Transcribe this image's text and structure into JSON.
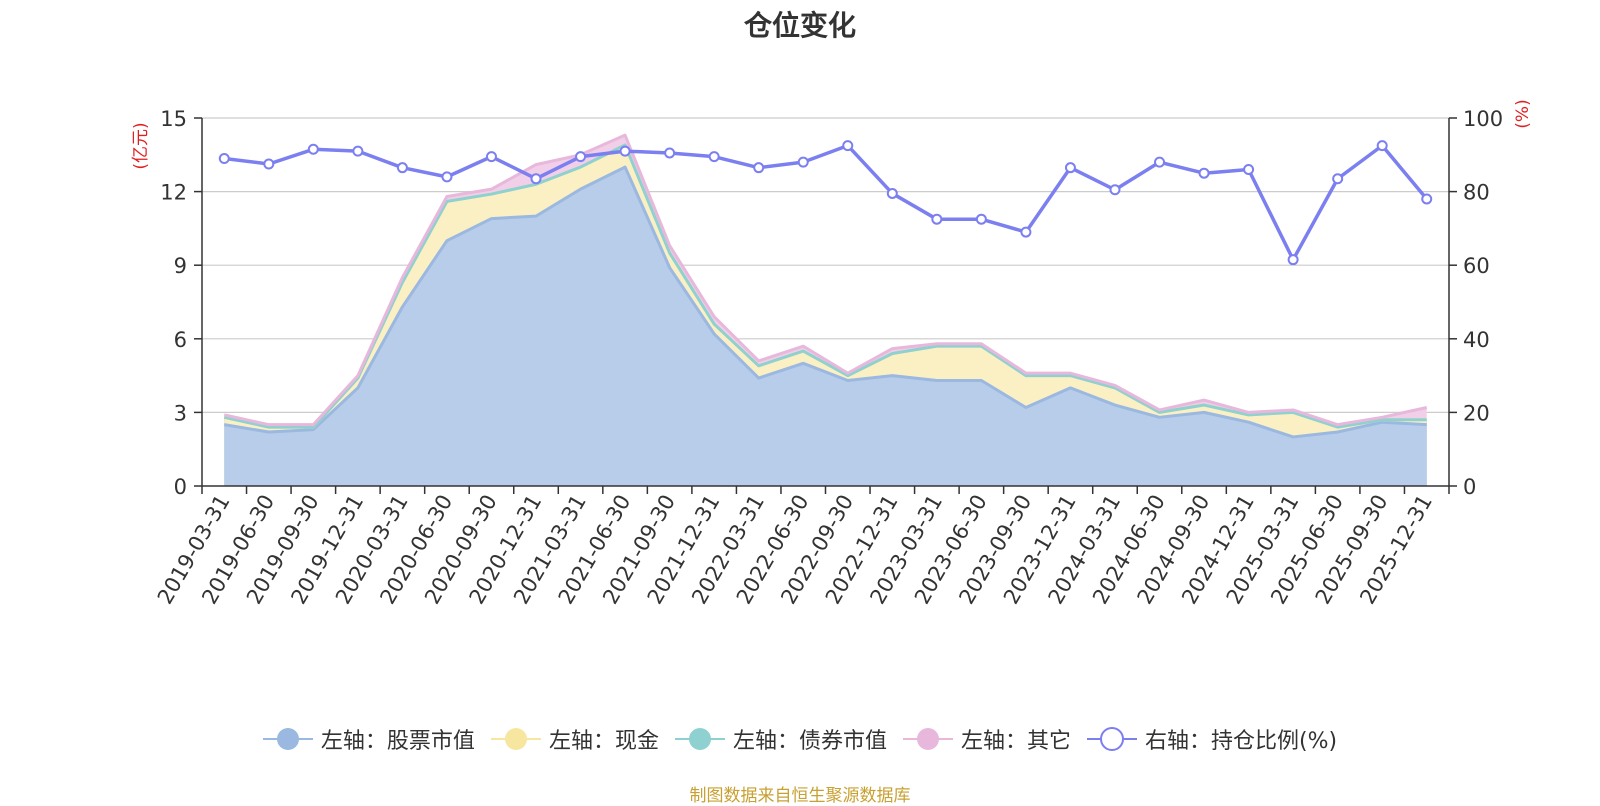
{
  "chart_data": {
    "type": "area",
    "title": "仓位变化",
    "left_axis": {
      "label": "(亿元)",
      "min": 0,
      "max": 15,
      "ticks": [
        0,
        3,
        6,
        9,
        12,
        15
      ]
    },
    "right_axis": {
      "label": "(%)",
      "min": 0,
      "max": 100,
      "ticks": [
        0,
        20,
        40,
        60,
        80,
        100
      ]
    },
    "categories": [
      "2019-03-31",
      "2019-06-30",
      "2019-09-30",
      "2019-12-31",
      "2020-03-31",
      "2020-06-30",
      "2020-09-30",
      "2020-12-31",
      "2021-03-31",
      "2021-06-30",
      "2021-09-30",
      "2021-12-31",
      "2022-03-31",
      "2022-06-30",
      "2022-09-30",
      "2022-12-31",
      "2023-03-31",
      "2023-06-30",
      "2023-09-30",
      "2023-12-31",
      "2024-03-31",
      "2024-06-30",
      "2024-09-30",
      "2024-12-31",
      "2025-03-31",
      "2025-06-30",
      "2025-09-30",
      "2025-12-31"
    ],
    "series": [
      {
        "name": "左轴：股票市值",
        "axis": "left",
        "color": "#9ab8e0",
        "fill": "#b8cdea",
        "values": [
          2.5,
          2.2,
          2.3,
          4.0,
          7.3,
          10.0,
          10.9,
          11.0,
          12.1,
          13.0,
          8.9,
          6.2,
          4.4,
          5.0,
          4.3,
          4.5,
          4.3,
          4.3,
          3.2,
          4.0,
          3.3,
          2.8,
          3.0,
          2.6,
          2.0,
          2.2,
          2.6,
          2.5
        ]
      },
      {
        "name": "左轴：现金",
        "axis": "left",
        "color": "#f7e6a0",
        "fill": "#fbefc4",
        "values": [
          0.3,
          0.2,
          0.1,
          0.4,
          1.0,
          1.6,
          1.0,
          1.3,
          0.9,
          0.9,
          0.6,
          0.4,
          0.5,
          0.5,
          0.2,
          0.9,
          1.4,
          1.4,
          1.3,
          0.5,
          0.7,
          0.2,
          0.3,
          0.3,
          1.0,
          0.2,
          0.1,
          0.2
        ]
      },
      {
        "name": "左轴：债券市值",
        "axis": "left",
        "color": "#8fd0d0",
        "fill": "#8fd0d0",
        "values": [
          0,
          0,
          0,
          0,
          0,
          0,
          0,
          0,
          0,
          0,
          0,
          0,
          0,
          0,
          0,
          0,
          0,
          0,
          0,
          0,
          0,
          0,
          0,
          0,
          0,
          0,
          0,
          0
        ]
      },
      {
        "name": "左轴：其它",
        "axis": "left",
        "color": "#e8b8dc",
        "fill": "#f1cfe8",
        "values": [
          0.1,
          0.1,
          0.1,
          0.1,
          0.2,
          0.2,
          0.2,
          0.8,
          0.5,
          0.4,
          0.3,
          0.3,
          0.2,
          0.2,
          0.1,
          0.2,
          0.1,
          0.1,
          0.1,
          0.1,
          0.1,
          0.1,
          0.2,
          0.1,
          0.1,
          0.1,
          0.1,
          0.5
        ]
      },
      {
        "name": "右轴：持仓比例(%)",
        "axis": "right",
        "color": "#7b7ff0",
        "values": [
          89.0,
          87.5,
          91.5,
          91.0,
          86.5,
          84.0,
          89.5,
          83.5,
          89.5,
          91.0,
          90.5,
          89.5,
          86.5,
          88.0,
          92.5,
          79.5,
          72.5,
          72.5,
          69.0,
          86.5,
          80.5,
          88.0,
          85.0,
          86.0,
          61.5,
          83.5,
          92.5,
          78.0
        ]
      }
    ]
  },
  "source": "制图数据来自恒生聚源数据库"
}
